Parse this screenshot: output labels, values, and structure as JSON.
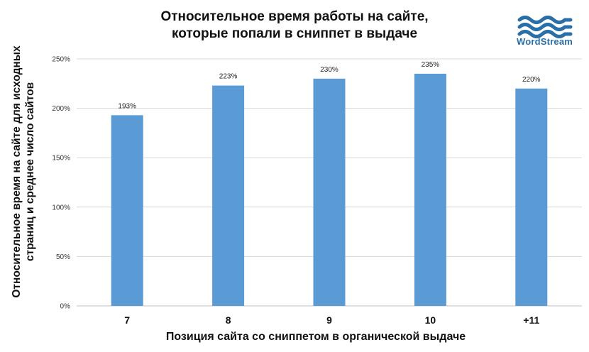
{
  "chart_data": {
    "type": "bar",
    "title_lines": [
      "Относительное время работы на сайте,",
      "которые попали в сниппет в выдаче"
    ],
    "ylabel_lines": [
      "Относительное время на сайте для исходных",
      "страниц и среднее число сайтов"
    ],
    "xlabel": "Позиция сайта со сниппетом в органической выдаче",
    "categories": [
      "7",
      "8",
      "9",
      "10",
      "+11"
    ],
    "values": [
      193,
      223,
      230,
      235,
      220
    ],
    "data_labels": [
      "193%",
      "223%",
      "230%",
      "235%",
      "220%"
    ],
    "ylim": [
      0,
      250
    ],
    "yticks": [
      0,
      50,
      100,
      150,
      200,
      250
    ],
    "ytick_labels": [
      "0%",
      "50%",
      "100%",
      "150%",
      "200%",
      "250%"
    ],
    "grid": true,
    "bar_color": "#5b9bd5"
  },
  "logo": {
    "text": "WordStream",
    "color": "#2b6fa8"
  }
}
